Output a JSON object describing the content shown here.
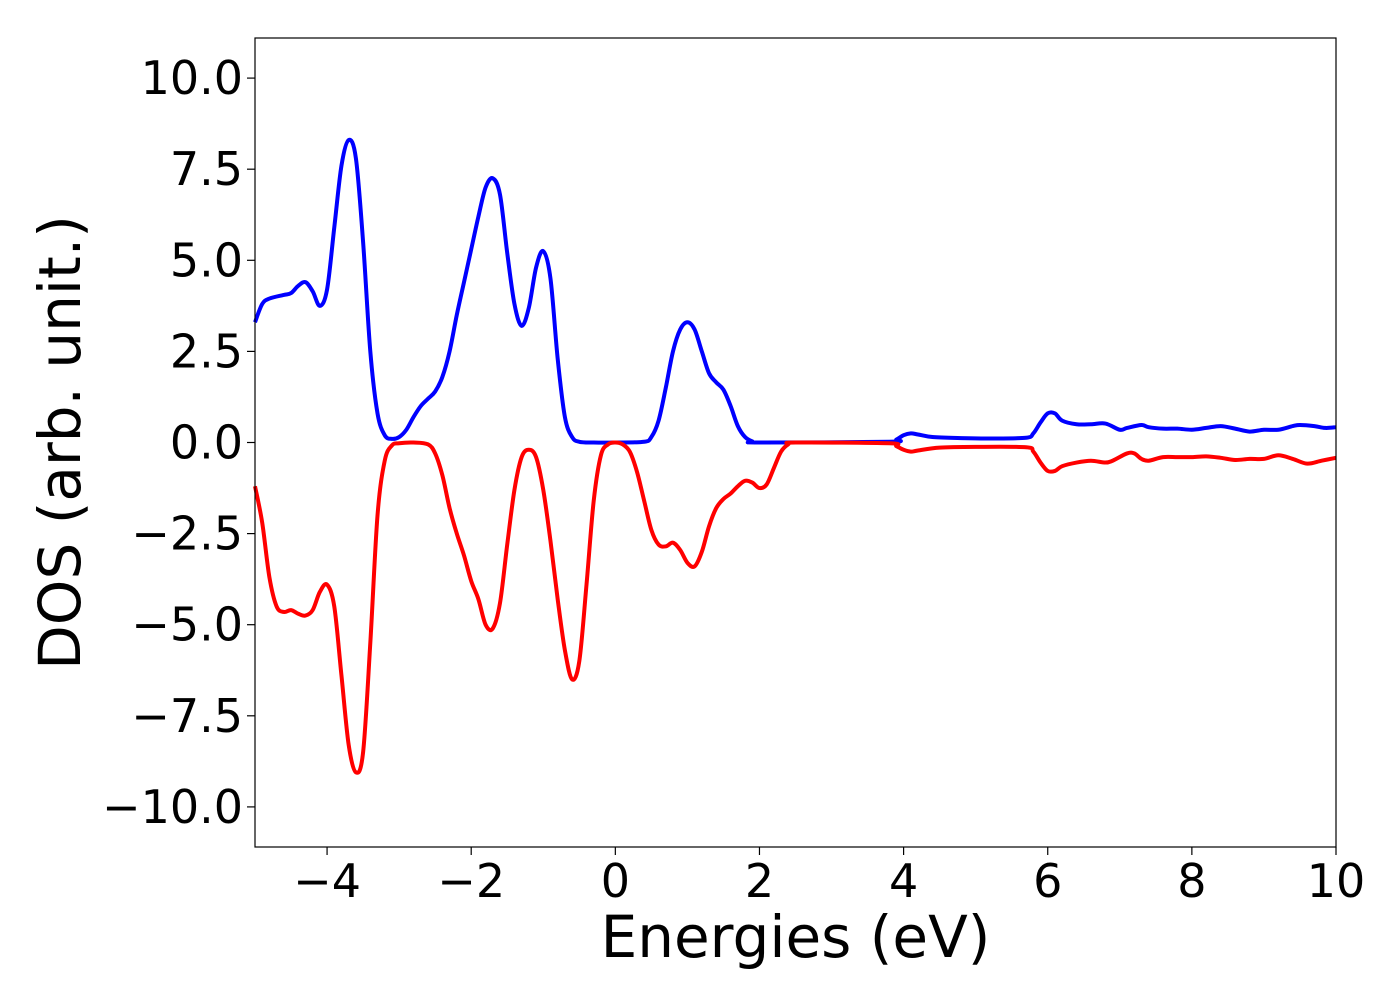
{
  "chart_data": {
    "type": "line",
    "title": "",
    "xlabel": "Energies (eV)",
    "ylabel": "DOS (arb. unit.)",
    "xlim": [
      -5,
      10
    ],
    "ylim": [
      -11.1,
      11.1
    ],
    "x_ticks": [
      -4,
      -2,
      0,
      2,
      4,
      6,
      8,
      10
    ],
    "x_tick_labels": [
      "−4",
      "−2",
      "0",
      "2",
      "4",
      "6",
      "8",
      "10"
    ],
    "y_ticks": [
      -10,
      -7.5,
      -5,
      -2.5,
      0,
      2.5,
      5,
      7.5,
      10
    ],
    "y_tick_labels": [
      "−10.0",
      "−7.5",
      "−5.0",
      "−2.5",
      "0.0",
      "2.5",
      "5.0",
      "7.5",
      "10.0"
    ],
    "grid": false,
    "legend": "none",
    "series": [
      {
        "color": "#0000ff",
        "points": [
          [
            -5.0,
            3.3
          ],
          [
            -4.9,
            3.8
          ],
          [
            -4.8,
            3.95
          ],
          [
            -4.6,
            4.05
          ],
          [
            -4.5,
            4.1
          ],
          [
            -4.4,
            4.3
          ],
          [
            -4.3,
            4.4
          ],
          [
            -4.2,
            4.15
          ],
          [
            -4.1,
            3.75
          ],
          [
            -4.0,
            4.2
          ],
          [
            -3.9,
            5.9
          ],
          [
            -3.8,
            7.6
          ],
          [
            -3.7,
            8.3
          ],
          [
            -3.6,
            7.8
          ],
          [
            -3.5,
            5.5
          ],
          [
            -3.4,
            2.5
          ],
          [
            -3.3,
            0.8
          ],
          [
            -3.2,
            0.2
          ],
          [
            -3.1,
            0.1
          ],
          [
            -3.0,
            0.15
          ],
          [
            -2.9,
            0.35
          ],
          [
            -2.8,
            0.7
          ],
          [
            -2.7,
            1.0
          ],
          [
            -2.6,
            1.2
          ],
          [
            -2.5,
            1.4
          ],
          [
            -2.4,
            1.8
          ],
          [
            -2.3,
            2.5
          ],
          [
            -2.2,
            3.5
          ],
          [
            -2.1,
            4.4
          ],
          [
            -2.0,
            5.3
          ],
          [
            -1.9,
            6.2
          ],
          [
            -1.8,
            7.0
          ],
          [
            -1.7,
            7.25
          ],
          [
            -1.6,
            6.8
          ],
          [
            -1.5,
            5.2
          ],
          [
            -1.4,
            3.8
          ],
          [
            -1.3,
            3.2
          ],
          [
            -1.2,
            3.7
          ],
          [
            -1.1,
            4.8
          ],
          [
            -1.0,
            5.25
          ],
          [
            -0.9,
            4.5
          ],
          [
            -0.8,
            2.3
          ],
          [
            -0.7,
            0.7
          ],
          [
            -0.6,
            0.15
          ],
          [
            -0.5,
            0.02
          ],
          [
            -0.3,
            0.0
          ],
          [
            0.0,
            0.0
          ],
          [
            0.4,
            0.02
          ],
          [
            0.5,
            0.15
          ],
          [
            0.6,
            0.6
          ],
          [
            0.7,
            1.5
          ],
          [
            0.8,
            2.5
          ],
          [
            0.9,
            3.1
          ],
          [
            1.0,
            3.3
          ],
          [
            1.1,
            3.1
          ],
          [
            1.2,
            2.5
          ],
          [
            1.3,
            1.9
          ],
          [
            1.4,
            1.65
          ],
          [
            1.5,
            1.45
          ],
          [
            1.6,
            1.0
          ],
          [
            1.7,
            0.45
          ],
          [
            1.8,
            0.15
          ],
          [
            1.9,
            0.03
          ],
          [
            2.0,
            0.0
          ],
          [
            3.8,
            0.02
          ],
          [
            3.9,
            0.08
          ],
          [
            4.0,
            0.2
          ],
          [
            4.1,
            0.25
          ],
          [
            4.2,
            0.22
          ],
          [
            4.4,
            0.15
          ],
          [
            4.8,
            0.12
          ],
          [
            5.2,
            0.11
          ],
          [
            5.7,
            0.13
          ],
          [
            5.8,
            0.25
          ],
          [
            5.9,
            0.55
          ],
          [
            6.0,
            0.8
          ],
          [
            6.1,
            0.8
          ],
          [
            6.2,
            0.6
          ],
          [
            6.4,
            0.5
          ],
          [
            6.6,
            0.5
          ],
          [
            6.8,
            0.52
          ],
          [
            7.0,
            0.35
          ],
          [
            7.1,
            0.4
          ],
          [
            7.3,
            0.48
          ],
          [
            7.4,
            0.42
          ],
          [
            7.6,
            0.38
          ],
          [
            7.8,
            0.38
          ],
          [
            8.0,
            0.35
          ],
          [
            8.2,
            0.4
          ],
          [
            8.4,
            0.45
          ],
          [
            8.6,
            0.38
          ],
          [
            8.8,
            0.3
          ],
          [
            9.0,
            0.35
          ],
          [
            9.2,
            0.35
          ],
          [
            9.4,
            0.45
          ],
          [
            9.5,
            0.48
          ],
          [
            9.7,
            0.45
          ],
          [
            9.85,
            0.4
          ],
          [
            10.0,
            0.42
          ]
        ]
      },
      {
        "color": "#ff0000",
        "points": [
          [
            -5.0,
            -1.2
          ],
          [
            -4.9,
            -2.2
          ],
          [
            -4.8,
            -3.7
          ],
          [
            -4.7,
            -4.5
          ],
          [
            -4.6,
            -4.65
          ],
          [
            -4.5,
            -4.6
          ],
          [
            -4.4,
            -4.7
          ],
          [
            -4.3,
            -4.75
          ],
          [
            -4.2,
            -4.6
          ],
          [
            -4.1,
            -4.1
          ],
          [
            -4.0,
            -3.9
          ],
          [
            -3.9,
            -4.5
          ],
          [
            -3.8,
            -6.4
          ],
          [
            -3.7,
            -8.3
          ],
          [
            -3.6,
            -9.05
          ],
          [
            -3.5,
            -8.5
          ],
          [
            -3.4,
            -5.5
          ],
          [
            -3.3,
            -2.0
          ],
          [
            -3.2,
            -0.5
          ],
          [
            -3.1,
            -0.08
          ],
          [
            -3.0,
            -0.02
          ],
          [
            -2.8,
            0.0
          ],
          [
            -2.6,
            -0.05
          ],
          [
            -2.5,
            -0.3
          ],
          [
            -2.4,
            -0.9
          ],
          [
            -2.3,
            -1.8
          ],
          [
            -2.2,
            -2.5
          ],
          [
            -2.1,
            -3.1
          ],
          [
            -2.0,
            -3.8
          ],
          [
            -1.9,
            -4.3
          ],
          [
            -1.8,
            -5.0
          ],
          [
            -1.7,
            -5.1
          ],
          [
            -1.6,
            -4.4
          ],
          [
            -1.5,
            -2.8
          ],
          [
            -1.4,
            -1.3
          ],
          [
            -1.3,
            -0.4
          ],
          [
            -1.2,
            -0.2
          ],
          [
            -1.1,
            -0.4
          ],
          [
            -1.0,
            -1.3
          ],
          [
            -0.9,
            -2.7
          ],
          [
            -0.8,
            -4.3
          ],
          [
            -0.7,
            -5.7
          ],
          [
            -0.6,
            -6.5
          ],
          [
            -0.5,
            -6.0
          ],
          [
            -0.4,
            -3.9
          ],
          [
            -0.3,
            -1.6
          ],
          [
            -0.2,
            -0.35
          ],
          [
            -0.1,
            -0.05
          ],
          [
            0.0,
            0.0
          ],
          [
            0.1,
            -0.05
          ],
          [
            0.2,
            -0.25
          ],
          [
            0.3,
            -0.8
          ],
          [
            0.4,
            -1.6
          ],
          [
            0.5,
            -2.4
          ],
          [
            0.6,
            -2.8
          ],
          [
            0.7,
            -2.85
          ],
          [
            0.8,
            -2.75
          ],
          [
            0.9,
            -2.95
          ],
          [
            1.0,
            -3.3
          ],
          [
            1.1,
            -3.4
          ],
          [
            1.2,
            -3.0
          ],
          [
            1.3,
            -2.3
          ],
          [
            1.4,
            -1.8
          ],
          [
            1.5,
            -1.55
          ],
          [
            1.6,
            -1.4
          ],
          [
            1.7,
            -1.2
          ],
          [
            1.8,
            -1.05
          ],
          [
            1.9,
            -1.1
          ],
          [
            2.0,
            -1.25
          ],
          [
            2.1,
            -1.15
          ],
          [
            2.2,
            -0.7
          ],
          [
            2.3,
            -0.25
          ],
          [
            2.4,
            -0.05
          ],
          [
            2.5,
            0.0
          ],
          [
            3.8,
            -0.02
          ],
          [
            3.9,
            -0.1
          ],
          [
            4.0,
            -0.2
          ],
          [
            4.1,
            -0.25
          ],
          [
            4.2,
            -0.22
          ],
          [
            4.5,
            -0.14
          ],
          [
            5.0,
            -0.12
          ],
          [
            5.7,
            -0.13
          ],
          [
            5.8,
            -0.25
          ],
          [
            5.9,
            -0.55
          ],
          [
            6.0,
            -0.78
          ],
          [
            6.1,
            -0.78
          ],
          [
            6.2,
            -0.65
          ],
          [
            6.4,
            -0.55
          ],
          [
            6.6,
            -0.5
          ],
          [
            6.8,
            -0.55
          ],
          [
            6.9,
            -0.5
          ],
          [
            7.1,
            -0.3
          ],
          [
            7.2,
            -0.3
          ],
          [
            7.3,
            -0.45
          ],
          [
            7.4,
            -0.5
          ],
          [
            7.6,
            -0.4
          ],
          [
            7.8,
            -0.4
          ],
          [
            8.0,
            -0.4
          ],
          [
            8.2,
            -0.38
          ],
          [
            8.4,
            -0.42
          ],
          [
            8.6,
            -0.48
          ],
          [
            8.8,
            -0.45
          ],
          [
            9.0,
            -0.45
          ],
          [
            9.2,
            -0.35
          ],
          [
            9.4,
            -0.45
          ],
          [
            9.6,
            -0.58
          ],
          [
            9.8,
            -0.5
          ],
          [
            10.0,
            -0.42
          ]
        ]
      }
    ]
  }
}
